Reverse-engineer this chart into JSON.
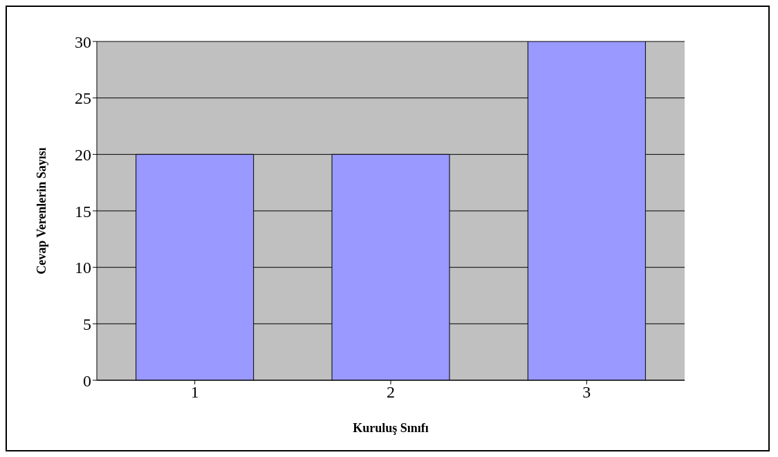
{
  "chart_data": {
    "type": "bar",
    "xlabel": "Kuruluş Sınıfı",
    "ylabel": "Cevap Verenlerin Sayısı",
    "categories": [
      "1",
      "2",
      "3"
    ],
    "values": [
      20,
      20,
      30
    ],
    "color": "#9999ff",
    "ylim": [
      0,
      30
    ],
    "yticks": [
      0,
      5,
      10,
      15,
      20,
      25,
      30
    ],
    "grid": "y"
  }
}
